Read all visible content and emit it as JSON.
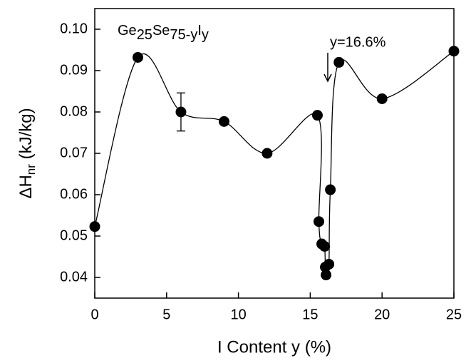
{
  "chart_data": {
    "type": "scatter",
    "x_label": "I Content y (%)",
    "y_label_parts": [
      "ΔH",
      "nr",
      " (kJ/kg)"
    ],
    "annotation_parts": [
      "Ge",
      "25",
      "Se",
      "75-y",
      "I",
      "y"
    ],
    "arrow_label": "y=16.6%",
    "series": [
      {
        "color": "#000000",
        "x": [
          0,
          3,
          6,
          9,
          12,
          15.5,
          15.6,
          15.8,
          16.0,
          16.05,
          16.1,
          16.3,
          16.4,
          17,
          20,
          25
        ],
        "values": [
          0.0523,
          0.0932,
          0.08,
          0.0777,
          0.07,
          0.0792,
          0.0535,
          0.0481,
          0.0475,
          0.0425,
          0.0406,
          0.0432,
          0.0612,
          0.092,
          0.0832,
          0.0947
        ],
        "errors": [
          null,
          null,
          0.0046,
          null,
          null,
          null,
          null,
          null,
          null,
          null,
          null,
          null,
          null,
          null,
          null,
          null
        ]
      }
    ],
    "xlim": [
      0,
      25
    ],
    "xticks": [
      0,
      5,
      10,
      15,
      20,
      25
    ],
    "ylim": [
      0.035,
      0.105
    ],
    "yticks": [
      {
        "value": 0.1,
        "label": "0.10"
      },
      0.09,
      0.08,
      0.07,
      0.06,
      0.05,
      0.04
    ]
  }
}
